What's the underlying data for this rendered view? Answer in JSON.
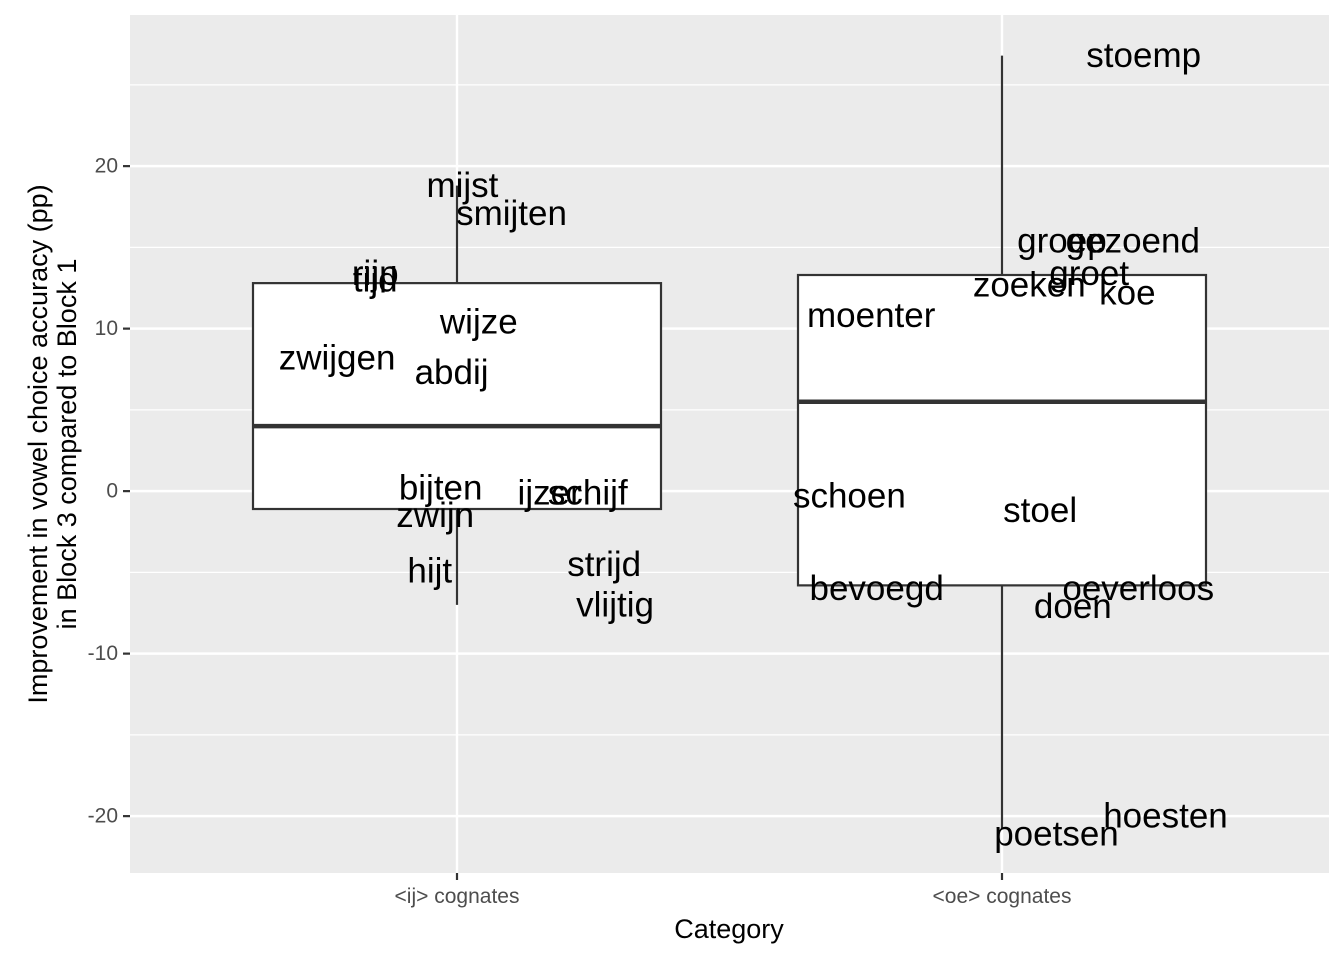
{
  "chart_data": {
    "type": "boxplot",
    "xlabel": "Category",
    "ylabel_lines": [
      "Improvement in vowel choice accuracy (pp)",
      "in Block 3 compared to Block 1"
    ],
    "ylim": [
      -23.5,
      29.3
    ],
    "y_ticks": [
      -20,
      -10,
      0,
      10,
      20
    ],
    "y_tick_labels": [
      "-20",
      "-10",
      "0",
      "10",
      "20"
    ],
    "grid": true,
    "categories": [
      "<ij> cognates",
      "<oe> cognates"
    ],
    "boxes": [
      {
        "category": "<ij> cognates",
        "lower_whisker": -7.0,
        "q1": -1.1,
        "median": 4.0,
        "q3": 12.8,
        "upper_whisker": 18.8
      },
      {
        "category": "<oe> cognates",
        "lower_whisker": -20.8,
        "q1": -5.8,
        "median": 5.5,
        "q3": 13.3,
        "upper_whisker": 26.8
      }
    ],
    "points": [
      {
        "label": "mijst",
        "category": 0,
        "x": 0.01,
        "y": 18.8
      },
      {
        "label": "smijten",
        "category": 0,
        "x": 0.1,
        "y": 17.1
      },
      {
        "label": "rijp",
        "category": 0,
        "x": -0.15,
        "y": 13.4
      },
      {
        "label": "tijd",
        "category": 0,
        "x": -0.15,
        "y": 13.0
      },
      {
        "label": "wijze",
        "category": 0,
        "x": 0.04,
        "y": 10.4
      },
      {
        "label": "zwijgen",
        "category": 0,
        "x": -0.22,
        "y": 8.2
      },
      {
        "label": "abdij",
        "category": 0,
        "x": -0.01,
        "y": 7.3
      },
      {
        "label": "bijten",
        "category": 0,
        "x": -0.03,
        "y": 0.2
      },
      {
        "label": "ijzer",
        "category": 0,
        "x": 0.17,
        "y": -0.1
      },
      {
        "label": "schijf",
        "category": 0,
        "x": 0.24,
        "y": -0.1
      },
      {
        "label": "zwijn",
        "category": 0,
        "x": -0.04,
        "y": -1.5
      },
      {
        "label": "hijt",
        "category": 0,
        "x": -0.05,
        "y": -4.9
      },
      {
        "label": "strijd",
        "category": 0,
        "x": 0.27,
        "y": -4.5
      },
      {
        "label": "vlijtig",
        "category": 0,
        "x": 0.29,
        "y": -7.0
      },
      {
        "label": "stoemp",
        "category": 1,
        "x": 0.26,
        "y": 26.8
      },
      {
        "label": "groep",
        "category": 1,
        "x": 0.11,
        "y": 15.4
      },
      {
        "label": "gezoend",
        "category": 1,
        "x": 0.24,
        "y": 15.4
      },
      {
        "label": "groet",
        "category": 1,
        "x": 0.16,
        "y": 13.4
      },
      {
        "label": "zoeken",
        "category": 1,
        "x": 0.05,
        "y": 12.7
      },
      {
        "label": "koe",
        "category": 1,
        "x": 0.23,
        "y": 12.2
      },
      {
        "label": "moenter",
        "category": 1,
        "x": -0.24,
        "y": 10.8
      },
      {
        "label": "schoen",
        "category": 1,
        "x": -0.28,
        "y": -0.3
      },
      {
        "label": "stoel",
        "category": 1,
        "x": 0.07,
        "y": -1.2
      },
      {
        "label": "bevoegd",
        "category": 1,
        "x": -0.23,
        "y": -6.0
      },
      {
        "label": "oeverloos",
        "category": 1,
        "x": 0.25,
        "y": -6.0
      },
      {
        "label": "doen",
        "category": 1,
        "x": 0.13,
        "y": -7.1
      },
      {
        "label": "hoesten",
        "category": 1,
        "x": 0.3,
        "y": -20.0
      },
      {
        "label": "poetsen",
        "category": 1,
        "x": 0.1,
        "y": -21.1
      }
    ],
    "colors": {
      "panel_background": "#ebebeb",
      "grid": "#ffffff",
      "box_stroke": "#333333",
      "box_fill": "#ffffff",
      "tick": "#333333"
    }
  }
}
